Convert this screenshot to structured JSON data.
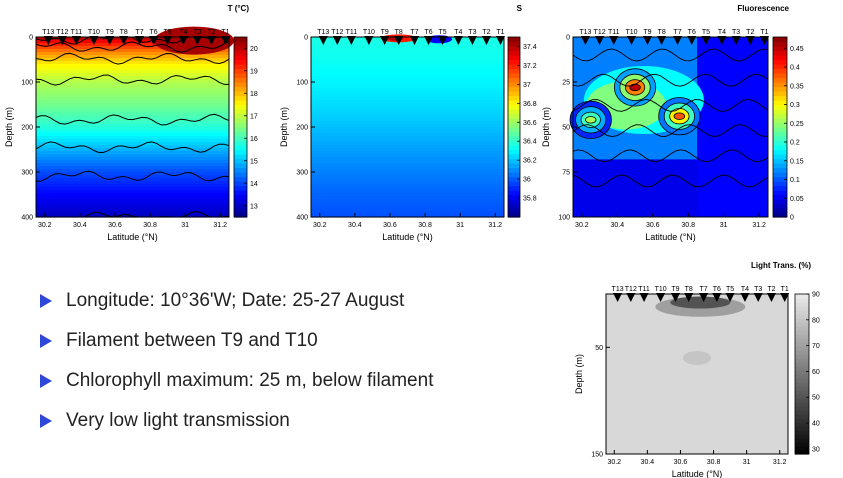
{
  "bullets": [
    "Longitude: 10°36'W; Date: 25-27 August",
    "Filament between T9 and T10",
    "Chlorophyll maximum: 25 m, below filament",
    "Very low light transmission"
  ],
  "colors": {
    "bullet": "#2f47d6"
  },
  "chart_data": [
    {
      "type": "heatmap",
      "name": "temperature",
      "title": "T (°C)",
      "xlabel": "Latitude (°N)",
      "ylabel": "Depth (m)",
      "xlim": [
        30.15,
        31.25
      ],
      "ylim": [
        0,
        400
      ],
      "y_inverted": true,
      "xticks": [
        "30.2",
        "30.4",
        "30.6",
        "30.8",
        "31",
        "31.2"
      ],
      "xtick_values": [
        30.2,
        30.4,
        30.6,
        30.8,
        31,
        31.2
      ],
      "yticks": [
        "0",
        "100",
        "200",
        "300",
        "400"
      ],
      "ytick_values": [
        0,
        100,
        200,
        300,
        400
      ],
      "colorbar": {
        "min": 12.5,
        "max": 20.5,
        "ticks": [
          "13",
          "14",
          "15",
          "16",
          "17",
          "18",
          "19",
          "20"
        ],
        "tick_values": [
          13,
          14,
          15,
          16,
          17,
          18,
          19,
          20
        ]
      },
      "colorscale": "jet",
      "stations": [
        "T13",
        "T12",
        "T11",
        "T10",
        "T9",
        "T8",
        "T7",
        "T6",
        "T5",
        "T4",
        "T3",
        "T2",
        "T1"
      ],
      "station_lat": [
        30.22,
        30.3,
        30.38,
        30.48,
        30.57,
        30.65,
        30.74,
        30.82,
        30.9,
        30.99,
        31.07,
        31.15,
        31.23
      ],
      "depth_profile": [
        {
          "depth": 0,
          "value": 20.2
        },
        {
          "depth": 15,
          "value": 19.3
        },
        {
          "depth": 35,
          "value": 18.4
        },
        {
          "depth": 60,
          "value": 17.6
        },
        {
          "depth": 100,
          "value": 16.9
        },
        {
          "depth": 150,
          "value": 16.4
        },
        {
          "depth": 200,
          "value": 15.8
        },
        {
          "depth": 250,
          "value": 14.9
        },
        {
          "depth": 300,
          "value": 14.1
        },
        {
          "depth": 350,
          "value": 13.5
        },
        {
          "depth": 400,
          "value": 13.0
        }
      ]
    },
    {
      "type": "heatmap",
      "name": "salinity",
      "title": "S",
      "xlabel": "Latitude (°N)",
      "ylabel": "Depth (m)",
      "xlim": [
        30.15,
        31.25
      ],
      "ylim": [
        0,
        400
      ],
      "y_inverted": true,
      "xticks": [
        "30.2",
        "30.4",
        "30.6",
        "30.8",
        "31",
        "31.2"
      ],
      "xtick_values": [
        30.2,
        30.4,
        30.6,
        30.8,
        31,
        31.2
      ],
      "yticks": [
        "0",
        "100",
        "200",
        "300",
        "400"
      ],
      "ytick_values": [
        0,
        100,
        200,
        300,
        400
      ],
      "colorbar": {
        "min": 35.6,
        "max": 37.5,
        "ticks": [
          "35.8",
          "36",
          "36.2",
          "36.4",
          "36.6",
          "36.8",
          "37",
          "37.2",
          "37.4"
        ],
        "tick_values": [
          35.8,
          36,
          36.2,
          36.4,
          36.6,
          36.8,
          37,
          37.2,
          37.4
        ]
      },
      "colorscale": "jet",
      "stations": [
        "T13",
        "T12",
        "T11",
        "T10",
        "T9",
        "T8",
        "T7",
        "T6",
        "T5",
        "T4",
        "T3",
        "T2",
        "T1"
      ],
      "station_lat": [
        30.22,
        30.3,
        30.38,
        30.48,
        30.57,
        30.65,
        30.74,
        30.82,
        30.9,
        30.99,
        31.07,
        31.15,
        31.23
      ],
      "depth_profile": [
        {
          "depth": 0,
          "value": 36.55
        },
        {
          "depth": 50,
          "value": 36.5
        },
        {
          "depth": 100,
          "value": 36.42
        },
        {
          "depth": 150,
          "value": 36.33
        },
        {
          "depth": 200,
          "value": 36.22
        },
        {
          "depth": 250,
          "value": 36.1
        },
        {
          "depth": 300,
          "value": 35.98
        },
        {
          "depth": 350,
          "value": 35.88
        },
        {
          "depth": 400,
          "value": 35.8
        }
      ]
    },
    {
      "type": "heatmap",
      "name": "fluorescence",
      "title": "Fluorescence",
      "xlabel": "Latitude (°N)",
      "ylabel": "Depth (m)",
      "xlim": [
        30.15,
        31.25
      ],
      "ylim": [
        0,
        100
      ],
      "y_inverted": true,
      "xticks": [
        "30.2",
        "30.4",
        "30.6",
        "30.8",
        "31",
        "31.2"
      ],
      "xtick_values": [
        30.2,
        30.4,
        30.6,
        30.8,
        31,
        31.2
      ],
      "yticks": [
        "0",
        "25",
        "50",
        "75",
        "100"
      ],
      "ytick_values": [
        0,
        25,
        50,
        75,
        100
      ],
      "colorbar": {
        "min": 0,
        "max": 0.48,
        "ticks": [
          "0",
          "0.05",
          "0.1",
          "0.15",
          "0.2",
          "0.25",
          "0.3",
          "0.35",
          "0.4",
          "0.45"
        ],
        "tick_values": [
          0,
          0.05,
          0.1,
          0.15,
          0.2,
          0.25,
          0.3,
          0.35,
          0.4,
          0.45
        ]
      },
      "colorscale": "jet",
      "stations": [
        "T13",
        "T12",
        "T11",
        "T10",
        "T9",
        "T8",
        "T7",
        "T6",
        "T5",
        "T4",
        "T3",
        "T2",
        "T1"
      ],
      "station_lat": [
        30.22,
        30.3,
        30.38,
        30.48,
        30.57,
        30.65,
        30.74,
        30.82,
        30.9,
        30.99,
        31.07,
        31.15,
        31.23
      ],
      "maxima": [
        {
          "lat": 30.5,
          "depth": 28,
          "value": 0.45
        },
        {
          "lat": 30.75,
          "depth": 44,
          "value": 0.38
        },
        {
          "lat": 30.25,
          "depth": 46,
          "value": 0.26
        }
      ]
    },
    {
      "type": "heatmap",
      "name": "light_transmission",
      "title": "Light Trans. (%)",
      "xlabel": "Latitude (°N)",
      "ylabel": "Depth (m)",
      "xlim": [
        30.15,
        31.25
      ],
      "ylim": [
        0,
        150
      ],
      "y_inverted": true,
      "xticks": [
        "30.2",
        "30.4",
        "30.6",
        "30.8",
        "31",
        "31.2"
      ],
      "xtick_values": [
        30.2,
        30.4,
        30.6,
        30.8,
        31,
        31.2
      ],
      "yticks": [
        "50",
        "150"
      ],
      "ytick_values": [
        50,
        150
      ],
      "colorbar": {
        "min": 28,
        "max": 90,
        "ticks": [
          "30",
          "40",
          "50",
          "60",
          "70",
          "80",
          "90"
        ],
        "tick_values": [
          30,
          40,
          50,
          60,
          70,
          80,
          90
        ]
      },
      "colorscale": "gray",
      "stations": [
        "T13",
        "T12",
        "T11",
        "T10",
        "T9",
        "T8",
        "T7",
        "T6",
        "T5",
        "T4",
        "T3",
        "T2",
        "T1"
      ],
      "station_lat": [
        30.22,
        30.3,
        30.38,
        30.48,
        30.57,
        30.65,
        30.74,
        30.82,
        30.9,
        30.99,
        31.07,
        31.15,
        31.23
      ],
      "background_value": 85
    }
  ]
}
